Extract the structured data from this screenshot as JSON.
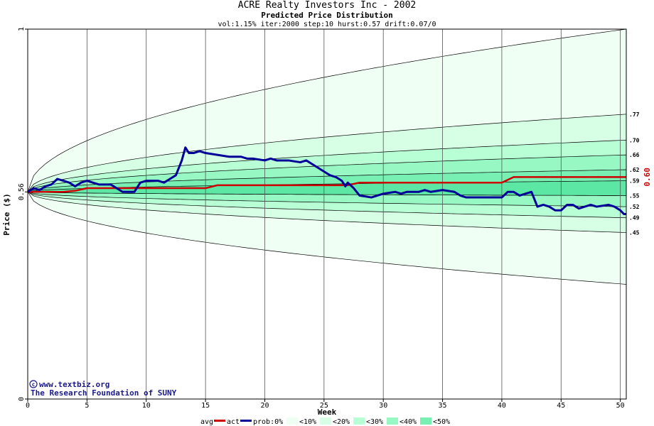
{
  "chart_data": {
    "type": "line",
    "title": "ACRE Realty Investors Inc - 2002",
    "subtitle": "Predicted Price Distribution",
    "params": "vol:1.15% iter:2000 step:10 hurst:0.57 drift:0.07/0",
    "xlabel": "Week",
    "ylabel": "Price ($)",
    "xlim": [
      0,
      50.5
    ],
    "ylim": [
      0,
      1
    ],
    "x_ticks": [
      0,
      5,
      10,
      15,
      20,
      25,
      30,
      35,
      40,
      45,
      50
    ],
    "y_ticks": [
      {
        "value": 0,
        "label": "0"
      },
      {
        "value": 0.56,
        "label": "0.56"
      },
      {
        "value": 1,
        "label": "1"
      }
    ],
    "grid": true,
    "right_labels": [
      {
        "value": 0.77,
        "label": ".77"
      },
      {
        "value": 0.7,
        "label": ".70"
      },
      {
        "value": 0.66,
        "label": ".66"
      },
      {
        "value": 0.62,
        "label": ".62"
      },
      {
        "value": 0.59,
        "label": ".59"
      },
      {
        "value": 0.55,
        "label": ".55"
      },
      {
        "value": 0.52,
        "label": ".52"
      },
      {
        "value": 0.49,
        "label": ".49"
      },
      {
        "value": 0.45,
        "label": ".45"
      }
    ],
    "current_value": {
      "value": 0.6,
      "label": "0.60"
    },
    "bands": [
      {
        "level": "prob:0%",
        "color": "#f0fff4",
        "upper_end": 1.0,
        "lower_end": 0.31,
        "upper_c": 0.183,
        "lower_c": 0.0974
      },
      {
        "level": "<10%",
        "color": "#d6ffe6",
        "upper_end": 0.77,
        "lower_end": 0.45,
        "upper_c": 0.0659,
        "lower_c": 0.0451
      },
      {
        "level": "<20%",
        "color": "#b8ffd6",
        "upper_end": 0.7,
        "lower_end": 0.49,
        "upper_c": 0.0396,
        "lower_c": 0.0282
      },
      {
        "level": "<30%",
        "color": "#98f8c4",
        "upper_end": 0.66,
        "lower_end": 0.52,
        "upper_c": 0.025,
        "lower_c": 0.0169
      },
      {
        "level": "<40%",
        "color": "#78f0b4",
        "upper_end": 0.62,
        "lower_end": 0.55,
        "upper_c": 0.0105,
        "lower_c": 0.0056
      },
      {
        "level": "<50%",
        "color": "#5ce8a4",
        "upper_end": 0.59,
        "lower_end": 0.55,
        "upper_c": 0.0016,
        "lower_c": 0.0056
      }
    ],
    "series": [
      {
        "name": "avg",
        "color": "#cc0000",
        "points": [
          [
            0,
            0.56
          ],
          [
            3,
            0.56
          ],
          [
            4,
            0.563
          ],
          [
            5,
            0.57
          ],
          [
            15,
            0.57
          ],
          [
            16,
            0.578
          ],
          [
            27,
            0.578
          ],
          [
            28,
            0.585
          ],
          [
            40,
            0.585
          ],
          [
            41,
            0.6
          ],
          [
            50.5,
            0.6
          ]
        ]
      },
      {
        "name": "act",
        "color": "#000099",
        "points": [
          [
            0,
            0.56
          ],
          [
            0.5,
            0.57
          ],
          [
            1,
            0.565
          ],
          [
            1.5,
            0.575
          ],
          [
            2,
            0.58
          ],
          [
            2.5,
            0.595
          ],
          [
            3,
            0.59
          ],
          [
            3.5,
            0.585
          ],
          [
            4,
            0.575
          ],
          [
            4.5,
            0.585
          ],
          [
            5,
            0.59
          ],
          [
            6,
            0.58
          ],
          [
            7,
            0.58
          ],
          [
            7.5,
            0.57
          ],
          [
            8,
            0.56
          ],
          [
            9,
            0.56
          ],
          [
            9.5,
            0.585
          ],
          [
            10,
            0.59
          ],
          [
            11,
            0.59
          ],
          [
            11.5,
            0.585
          ],
          [
            12,
            0.595
          ],
          [
            12.5,
            0.605
          ],
          [
            13,
            0.645
          ],
          [
            13.3,
            0.68
          ],
          [
            13.6,
            0.665
          ],
          [
            14,
            0.665
          ],
          [
            14.5,
            0.67
          ],
          [
            15,
            0.665
          ],
          [
            16,
            0.66
          ],
          [
            17,
            0.655
          ],
          [
            18,
            0.655
          ],
          [
            18.5,
            0.65
          ],
          [
            19,
            0.65
          ],
          [
            20,
            0.645
          ],
          [
            20.5,
            0.65
          ],
          [
            21,
            0.645
          ],
          [
            22,
            0.645
          ],
          [
            23,
            0.64
          ],
          [
            23.5,
            0.645
          ],
          [
            24,
            0.635
          ],
          [
            25,
            0.615
          ],
          [
            25.5,
            0.605
          ],
          [
            26,
            0.6
          ],
          [
            26.5,
            0.59
          ],
          [
            26.8,
            0.575
          ],
          [
            27,
            0.585
          ],
          [
            27.5,
            0.57
          ],
          [
            28,
            0.55
          ],
          [
            29,
            0.545
          ],
          [
            30,
            0.555
          ],
          [
            31,
            0.56
          ],
          [
            31.5,
            0.555
          ],
          [
            32,
            0.56
          ],
          [
            33,
            0.56
          ],
          [
            33.5,
            0.565
          ],
          [
            34,
            0.56
          ],
          [
            35,
            0.565
          ],
          [
            36,
            0.56
          ],
          [
            36.5,
            0.55
          ],
          [
            37,
            0.545
          ],
          [
            38,
            0.545
          ],
          [
            39,
            0.545
          ],
          [
            40,
            0.545
          ],
          [
            40.5,
            0.56
          ],
          [
            41,
            0.56
          ],
          [
            41.5,
            0.55
          ],
          [
            42,
            0.555
          ],
          [
            42.5,
            0.56
          ],
          [
            43,
            0.52
          ],
          [
            43.5,
            0.525
          ],
          [
            44,
            0.52
          ],
          [
            44.5,
            0.51
          ],
          [
            45,
            0.51
          ],
          [
            45.5,
            0.525
          ],
          [
            46,
            0.525
          ],
          [
            46.5,
            0.515
          ],
          [
            47,
            0.52
          ],
          [
            47.5,
            0.525
          ],
          [
            48,
            0.52
          ],
          [
            49,
            0.525
          ],
          [
            49.5,
            0.52
          ],
          [
            50,
            0.51
          ],
          [
            50.3,
            0.5
          ],
          [
            50.5,
            0.5
          ]
        ]
      }
    ],
    "legend": [
      "avg",
      "act",
      "prob:0%",
      "<10%",
      "<20%",
      "<30%",
      "<40%",
      "<50%"
    ],
    "legend_placement": "bottom"
  },
  "credits": {
    "site": "www.textbiz.org",
    "org": "The Research Foundation of SUNY"
  },
  "legend_labels": {
    "avg": "avg",
    "act": "act",
    "p0": "prob:0%",
    "p10": "<10%",
    "p20": "<20%",
    "p30": "<30%",
    "p40": "<40%",
    "p50": "<50%"
  }
}
